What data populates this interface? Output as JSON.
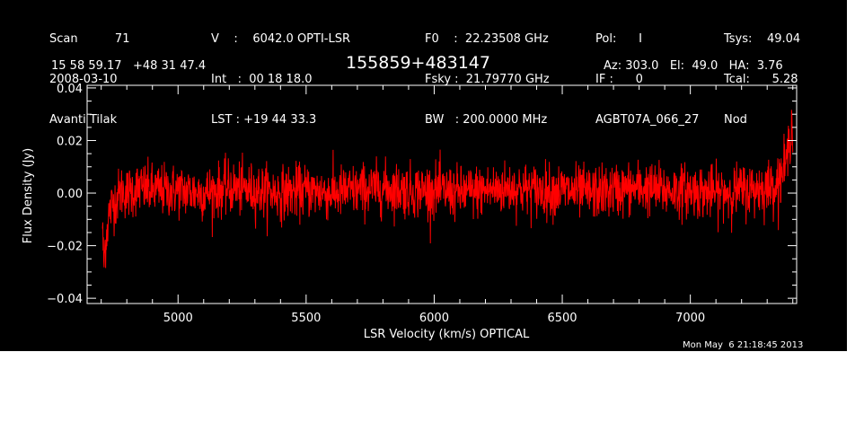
{
  "header": {
    "col1": [
      "Scan          71",
      "2008-03-10",
      "Avanti Tilak"
    ],
    "col2": [
      "V    :    6042.0 OPTI-LSR",
      "Int   :  00 18 18.0",
      "LST : +19 44 33.3"
    ],
    "col3": [
      "F0    :  22.23508 GHz",
      "Fsky :  21.79770 GHz",
      "BW   : 200.0000 MHz"
    ],
    "col4": [
      "Pol:      I",
      "IF :      0",
      "AGBT07A_066_27"
    ],
    "col5": [
      "Tsys:    49.04",
      "Tcal:      5.28",
      "Nod"
    ],
    "coords": "15 58 59.17   +48 31 47.4",
    "source": "155859+483147",
    "azelha": "Az: 303.0   El:  49.0   HA:  3.76"
  },
  "footer": {
    "timestamp": "Mon May  6 21:18:45 2013"
  },
  "colors": {
    "background": "#000000",
    "axes": "#ffffff",
    "series": "#ff0000"
  },
  "chart_data": {
    "type": "line",
    "xlabel": "LSR Velocity (km/s) OPTICAL",
    "ylabel": "Flux Density (Jy)",
    "xlim": [
      4645,
      7415
    ],
    "ylim": [
      -0.042,
      0.041
    ],
    "xticks": [
      5000,
      5500,
      6000,
      6500,
      7000
    ],
    "yticks": [
      -0.04,
      -0.02,
      0.0,
      0.02,
      0.04
    ],
    "xtick_labels": [
      "5000",
      "5500",
      "6000",
      "6500",
      "7000"
    ],
    "ytick_labels": [
      "−0.04",
      "−0.02",
      "0.00",
      "0.02",
      "0.04"
    ],
    "grid": false,
    "series": [
      {
        "color": "#ff0000",
        "description": "noisy spectrum, roughly flat about 0 Jy with +/-0.01 Jy noise; dip to about -0.028 Jy near 4710 km/s and rise to about +0.028 Jy near 7395 km/s",
        "x": [
          4705,
          4710,
          4715,
          4720,
          4730,
          4745,
          4760,
          4780,
          4800,
          4850,
          4900,
          5000,
          5100,
          5200,
          5300,
          5400,
          5500,
          5600,
          5700,
          5800,
          5900,
          6000,
          6100,
          6200,
          6300,
          6400,
          6500,
          6600,
          6700,
          6800,
          6900,
          7000,
          7100,
          7200,
          7300,
          7340,
          7360,
          7375,
          7385,
          7395,
          7400
        ],
        "y": [
          -0.012,
          -0.028,
          -0.02,
          -0.016,
          -0.008,
          -0.004,
          -0.002,
          0.001,
          0.0,
          0.002,
          0.001,
          0.001,
          0.0,
          0.002,
          0.001,
          0.0,
          0.001,
          0.0,
          0.001,
          0.002,
          0.001,
          0.001,
          0.0,
          0.001,
          0.002,
          0.001,
          0.001,
          0.0,
          0.001,
          0.002,
          0.001,
          0.001,
          0.0,
          0.001,
          0.002,
          0.004,
          0.008,
          0.012,
          0.018,
          0.028,
          0.02
        ],
        "noise_sigma": 0.005
      }
    ]
  }
}
